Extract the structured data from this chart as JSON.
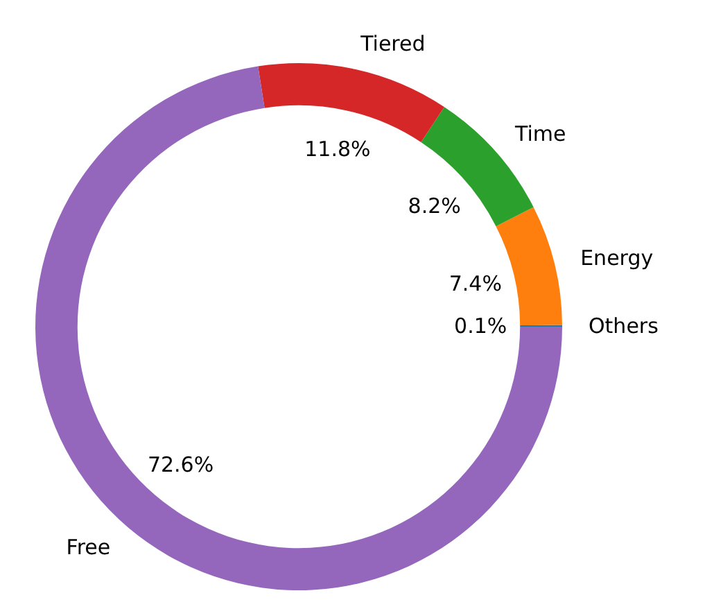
{
  "chart_data": {
    "type": "donut",
    "categories": [
      "Others",
      "Energy",
      "Time",
      "Tiered",
      "Free"
    ],
    "values": [
      0.1,
      7.4,
      8.2,
      11.8,
      72.6
    ],
    "value_labels": [
      "0.1%",
      "7.4%",
      "8.2%",
      "11.8%",
      "72.6%"
    ],
    "colors": [
      "#1f77b4",
      "#ff7f0e",
      "#2ca02c",
      "#d62728",
      "#9467bd"
    ]
  }
}
